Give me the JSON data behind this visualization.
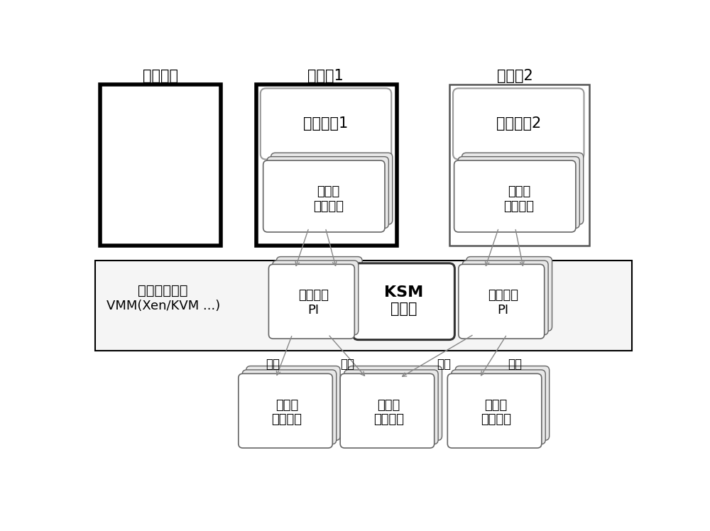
{
  "bg_color": "#ffffff",
  "labels": {
    "putong_jincheng": "普通进程",
    "xuniji1": "虚拟机1",
    "xuniji2": "虚拟机2",
    "caozuoxitong1": "操作系统1",
    "caozuoxitong2": "操作系统2",
    "kehji_neicun1": "客户机\n内存页面",
    "kehji_neicun2": "客户机\n内存页面",
    "vmm_line1": "虚拟机管理器",
    "vmm_line2": "VMM(Xen/KVM ...)",
    "yemian_biaoshi1": "页面标识\nPI",
    "yemian_biaoshi2": "页面标识\nPI",
    "ksm_line1": "KSM",
    "ksm_line2": "管理器",
    "zhuji_neicun1": "宿主机\n内存页面",
    "zhuji_gongxiang": "宿主机\n共享页面",
    "zhuji_neicun2": "宿主机\n内存页面",
    "yingshe": "映射"
  }
}
